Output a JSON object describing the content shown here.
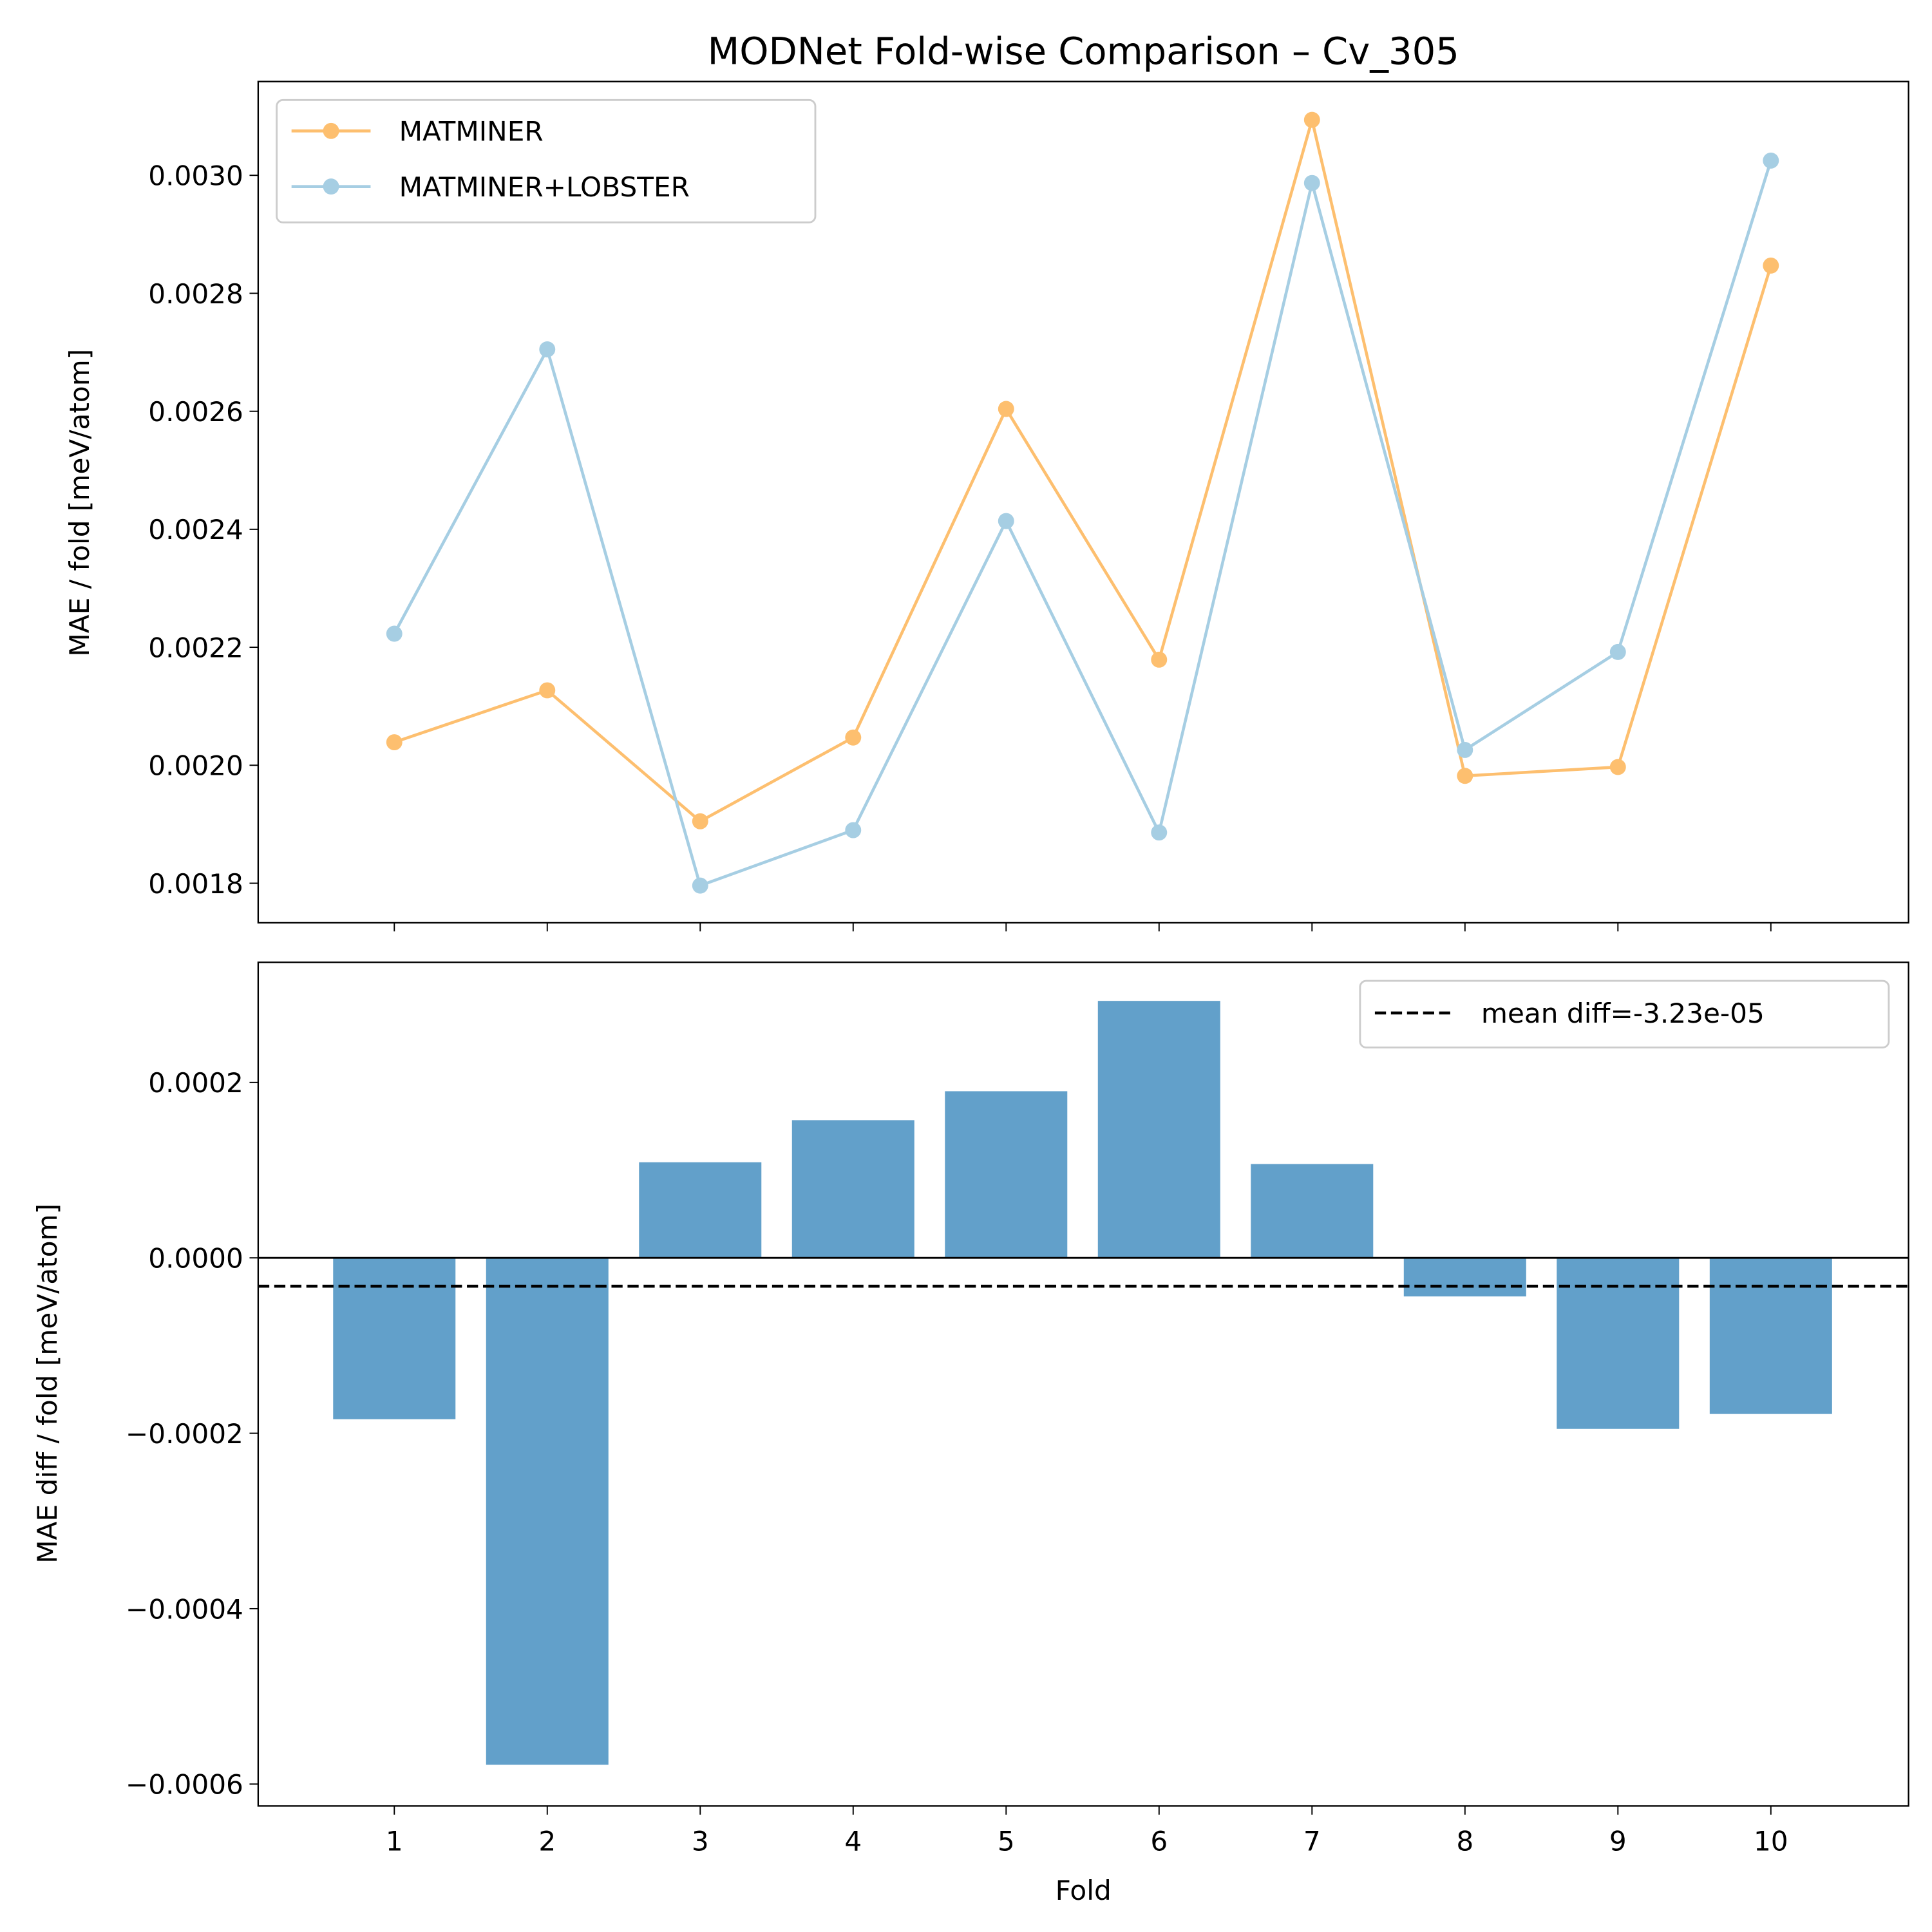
{
  "chart_data": [
    {
      "type": "line",
      "title": "MODNet Fold-wise Comparison – Cv_305",
      "xlabel": "",
      "ylabel": "MAE / fold [meV/atom]",
      "x": [
        1,
        2,
        3,
        4,
        5,
        6,
        7,
        8,
        9,
        10
      ],
      "xlim": [
        0.11,
        10.9
      ],
      "ylim": [
        0.001733,
        0.003159
      ],
      "yticks": [
        0.0018,
        0.002,
        0.0022,
        0.0024,
        0.0026,
        0.0028,
        0.003
      ],
      "ytick_labels": [
        "0.0018",
        "0.0020",
        "0.0022",
        "0.0024",
        "0.0026",
        "0.0028",
        "0.0030"
      ],
      "legend_position": "upper-left",
      "grid": false,
      "series": [
        {
          "name": "MATMINER",
          "color": "#fdbf6f",
          "values": [
            0.002039,
            0.002127,
            0.001905,
            0.002047,
            0.002604,
            0.002179,
            0.003094,
            0.001982,
            0.001997,
            0.002847
          ]
        },
        {
          "name": "MATMINER+LOBSTER",
          "color": "#a6cee3",
          "values": [
            0.002223,
            0.002705,
            0.001796,
            0.00189,
            0.002414,
            0.001886,
            0.002987,
            0.002026,
            0.002192,
            0.003025
          ]
        }
      ]
    },
    {
      "type": "bar",
      "xlabel": "Fold",
      "ylabel": "MAE diff / fold [meV/atom]",
      "categories": [
        "1",
        "2",
        "3",
        "4",
        "5",
        "6",
        "7",
        "8",
        "9",
        "10"
      ],
      "values": [
        -0.000184,
        -0.000578,
        0.000109,
        0.000157,
        0.00019,
        0.000293,
        0.000107,
        -4.4e-05,
        -0.000195,
        -0.000178
      ],
      "bar_color": "#62a0ca",
      "xlim": [
        0.11,
        10.9
      ],
      "ylim": [
        -0.000625,
        0.000337
      ],
      "yticks": [
        -0.0006,
        -0.0004,
        -0.0002,
        0.0,
        0.0002
      ],
      "ytick_labels": [
        "−0.0006",
        "−0.0004",
        "−0.0002",
        "0.0000",
        "0.0002"
      ],
      "mean_line": {
        "value": -3.23e-05,
        "label": "mean diff=-3.23e-05",
        "color": "#000000",
        "style": "dashed"
      },
      "zero_line": true,
      "legend_position": "upper-right",
      "grid": false
    }
  ]
}
